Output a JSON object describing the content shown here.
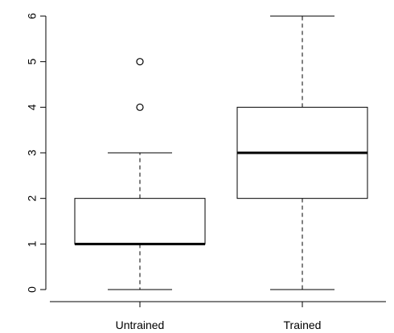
{
  "chart_data": {
    "type": "boxplot",
    "title": "",
    "xlabel": "",
    "ylabel": "",
    "ylim": [
      0,
      6
    ],
    "yticks": [
      0,
      1,
      2,
      3,
      4,
      5,
      6
    ],
    "categories": [
      "Untrained",
      "Trained"
    ],
    "boxes": [
      {
        "label": "Untrained",
        "min": 0,
        "q1": 1,
        "median": 1,
        "q3": 2,
        "max": 3,
        "outliers": [
          4,
          5
        ]
      },
      {
        "label": "Trained",
        "min": 0,
        "q1": 2,
        "median": 3,
        "q3": 4,
        "max": 6,
        "outliers": []
      }
    ],
    "grid": false,
    "legend": "none"
  }
}
